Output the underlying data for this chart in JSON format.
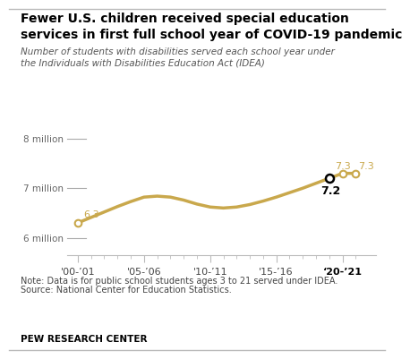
{
  "title_line1": "Fewer U.S. children received special education",
  "title_line2": "services in first full school year of COVID-19 pandemic",
  "subtitle_line1": "Number of students with disabilities served each school year under",
  "subtitle_line2": "the Individuals with Disabilities Education Act (IDEA)",
  "note_line1": "Note: Data is for public school students ages 3 to 21 served under IDEA.",
  "note_line2": "Source: National Center for Education Statistics.",
  "footer": "PEW RESEARCH CENTER",
  "x_values": [
    0,
    1,
    2,
    3,
    4,
    5,
    6,
    7,
    8,
    9,
    10,
    11,
    12,
    13,
    14,
    15,
    16,
    17,
    18,
    19,
    20,
    21
  ],
  "y_values": [
    6.3,
    6.41,
    6.52,
    6.63,
    6.73,
    6.82,
    6.84,
    6.82,
    6.76,
    6.68,
    6.62,
    6.6,
    6.62,
    6.67,
    6.74,
    6.82,
    6.91,
    7.0,
    7.1,
    7.2,
    7.3,
    7.3
  ],
  "x_tick_positions": [
    0,
    5,
    10,
    15,
    20
  ],
  "x_tick_labels": [
    "'00-’01",
    "'05-’06",
    "'10-’11",
    "'15-’16",
    "‘20-’21"
  ],
  "y_ticks": [
    6.0,
    7.0,
    8.0
  ],
  "y_tick_labels": [
    "6 million",
    "7 million",
    "8 million"
  ],
  "line_color": "#C9A84C",
  "background_color": "#ffffff",
  "ylim_bottom": 5.65,
  "ylim_top": 8.35,
  "xlim_left": -0.8,
  "xlim_right": 22.5
}
